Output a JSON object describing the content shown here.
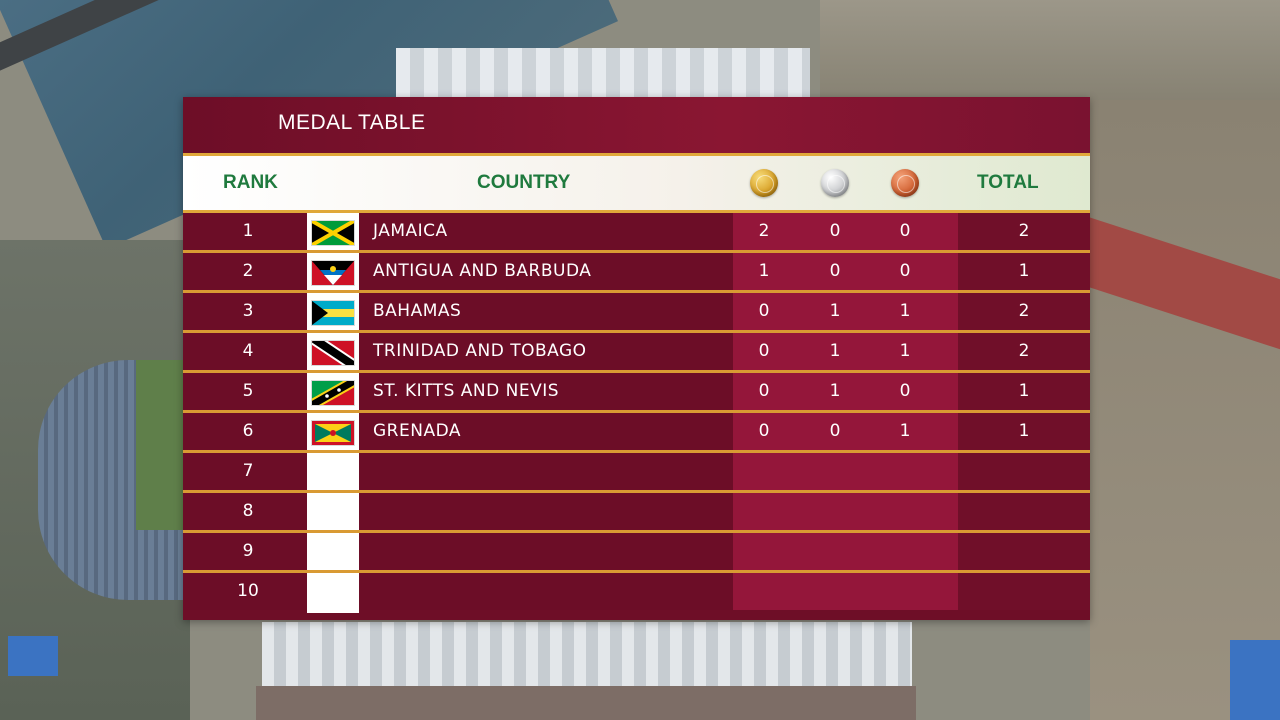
{
  "title": "MEDAL TABLE",
  "headers": {
    "rank": "RANK",
    "country": "COUNTRY",
    "gold_icon": "gold-medal-icon",
    "silver_icon": "silver-medal-icon",
    "bronze_icon": "bronze-medal-icon",
    "total": "TOTAL"
  },
  "colors": {
    "panel": "#6e0e27",
    "medal_column": "#94163a",
    "header_text": "#1f7a3e",
    "separator": "#d99a33"
  },
  "rows": [
    {
      "rank": "1",
      "country": "JAMAICA",
      "flag": "jamaica-flag-icon",
      "gold": "2",
      "silver": "0",
      "bronze": "0",
      "total": "2"
    },
    {
      "rank": "2",
      "country": "ANTIGUA AND BARBUDA",
      "flag": "antigua-and-barbuda-flag-icon",
      "gold": "1",
      "silver": "0",
      "bronze": "0",
      "total": "1"
    },
    {
      "rank": "3",
      "country": "BAHAMAS",
      "flag": "bahamas-flag-icon",
      "gold": "0",
      "silver": "1",
      "bronze": "1",
      "total": "2"
    },
    {
      "rank": "4",
      "country": "TRINIDAD AND TOBAGO",
      "flag": "trinidad-and-tobago-flag-icon",
      "gold": "0",
      "silver": "1",
      "bronze": "1",
      "total": "2"
    },
    {
      "rank": "5",
      "country": "ST. KITTS AND NEVIS",
      "flag": "st-kitts-and-nevis-flag-icon",
      "gold": "0",
      "silver": "1",
      "bronze": "0",
      "total": "1"
    },
    {
      "rank": "6",
      "country": "GRENADA",
      "flag": "grenada-flag-icon",
      "gold": "0",
      "silver": "0",
      "bronze": "1",
      "total": "1"
    },
    {
      "rank": "7",
      "country": "",
      "flag": "",
      "gold": "",
      "silver": "",
      "bronze": "",
      "total": ""
    },
    {
      "rank": "8",
      "country": "",
      "flag": "",
      "gold": "",
      "silver": "",
      "bronze": "",
      "total": ""
    },
    {
      "rank": "9",
      "country": "",
      "flag": "",
      "gold": "",
      "silver": "",
      "bronze": "",
      "total": ""
    },
    {
      "rank": "10",
      "country": "",
      "flag": "",
      "gold": "",
      "silver": "",
      "bronze": "",
      "total": ""
    }
  ]
}
